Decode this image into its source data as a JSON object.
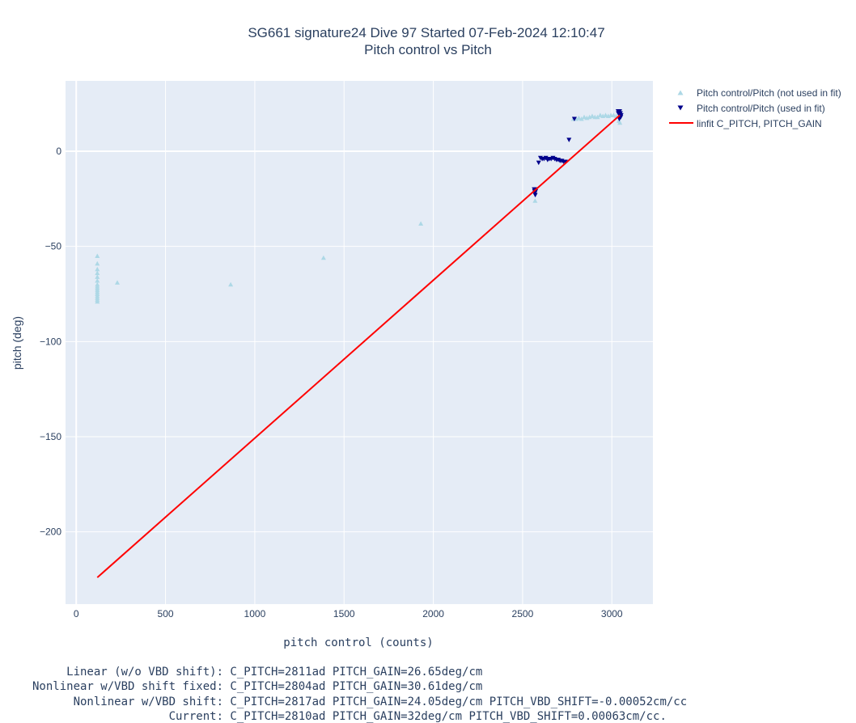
{
  "chart_data": {
    "type": "scatter",
    "title": "SG661 signature24 Dive 97 Started 07-Feb-2024 12:10:47",
    "subtitle": "Pitch control vs Pitch",
    "xlabel": "pitch control (counts)",
    "ylabel": "pitch (deg)",
    "xlim": [
      -60,
      3230
    ],
    "ylim": [
      -238,
      37
    ],
    "xticks": [
      0,
      500,
      1000,
      1500,
      2000,
      2500,
      3000
    ],
    "yticks": [
      0,
      -50,
      -100,
      -150,
      -200
    ],
    "ytick_labels": [
      "0",
      "−50",
      "−100",
      "−150",
      "−200"
    ],
    "grid": true,
    "legend_position": "top-right",
    "series": [
      {
        "name": "Pitch control/Pitch (not used in fit)",
        "marker": "triangle-up",
        "color": "#add8e6",
        "x": [
          118,
          118,
          118,
          118,
          118,
          118,
          118,
          118,
          118,
          118,
          118,
          118,
          118,
          118,
          118,
          118,
          230,
          865,
          1385,
          1930,
          2570,
          2785,
          2800,
          2815,
          2830,
          2845,
          2860,
          2875,
          2890,
          2905,
          2920,
          2935,
          2950,
          2965,
          2980,
          2995,
          3010,
          3025,
          3040,
          3045
        ],
        "y": [
          -55,
          -59,
          -62,
          -64,
          -66,
          -68,
          -70,
          -71,
          -72,
          -73,
          -74,
          -75,
          -76,
          -77,
          -78,
          -79,
          -69,
          -70,
          -56,
          -38,
          -26,
          17,
          17,
          17.5,
          17,
          18,
          17.5,
          18,
          18.5,
          18,
          18,
          19,
          18.5,
          19,
          18.5,
          19,
          19,
          18.5,
          16,
          15
        ]
      },
      {
        "name": "Pitch control/Pitch (used in fit)",
        "marker": "triangle-down",
        "color": "#00008b",
        "x": [
          2565,
          2567,
          2569,
          2571,
          2573,
          2575,
          2590,
          2600,
          2610,
          2620,
          2630,
          2640,
          2650,
          2660,
          2670,
          2680,
          2690,
          2700,
          2710,
          2720,
          2730,
          2740,
          2760,
          2790,
          3035,
          3040,
          3045,
          3050,
          3038,
          3048,
          3042,
          3052,
          3044,
          3036
        ],
        "y": [
          -20,
          -21,
          -22,
          -23,
          -21,
          -20,
          -6,
          -3.5,
          -4,
          -4,
          -3.5,
          -4.5,
          -4,
          -4,
          -3.5,
          -4,
          -4.5,
          -4.5,
          -5,
          -5,
          -5.5,
          -5.5,
          6,
          17,
          21,
          20,
          19,
          18,
          21,
          20,
          17,
          19,
          21,
          20
        ]
      },
      {
        "name": "linfit C_PITCH, PITCH_GAIN",
        "type": "line",
        "color": "#ff0000",
        "x": [
          118,
          3045
        ],
        "y": [
          -224,
          19
        ]
      }
    ],
    "annotations": [
      "     Linear (w/o VBD shift): C_PITCH=2811ad PITCH_GAIN=26.65deg/cm",
      "Nonlinear w/VBD shift fixed: C_PITCH=2804ad PITCH_GAIN=30.61deg/cm",
      "      Nonlinear w/VBD shift: C_PITCH=2817ad PITCH_GAIN=24.05deg/cm PITCH_VBD_SHIFT=-0.00052cm/cc",
      "                    Current: C_PITCH=2810ad PITCH_GAIN=32deg/cm PITCH_VBD_SHIFT=0.00063cm/cc."
    ]
  }
}
